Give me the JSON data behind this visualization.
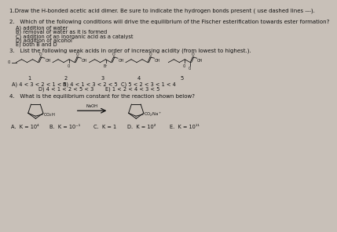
{
  "bg_color": "#c8c0b8",
  "text_color": "#111111",
  "title": "1.Draw the H-bonded acetic acid dimer. Be sure to indicate the hydrogen bonds present ( use dashed lines ---).",
  "q2_title": "2.   Which of the following conditions will drive the equilibrium of the Fischer esterification towards ester formation?",
  "q2_options": [
    "A) addition of water",
    "B) removal of water as it is formed",
    "C) addition of an inorganic acid as a catalyst",
    "D) addition of alcohol",
    "E) both B and D"
  ],
  "q3_title": "3.   List the following weak acids in order of increasing acidity (from lowest to highest.).",
  "q3_answer_A": "A) 4 < 3 < 2 < 1 < 5",
  "q3_answer_B": "B) 4 < 1 < 3 < 2 < 5",
  "q3_answer_C": "C) 5 < 2 < 3 < 1 < 4",
  "q3_answer_D": "D) 4 < 1 < 2 < 5 < 3",
  "q3_answer_E": "E) 1 < 2 < 4 < 3 < 5",
  "q4_title": "4.   What is the equilibrium constant for the reaction shown below?",
  "q4_answer_A": "A.  K = 10⁴",
  "q4_answer_B": "B.  K = 10⁻¹",
  "q4_answer_C": "C.  K = 1",
  "q4_answer_D": "D.  K = 10²",
  "q4_answer_E": "E.  K = 10¹¹",
  "naoh_label": "NaOH",
  "col_dark": "#111111",
  "fs_title": 5.0,
  "fs_body": 4.8,
  "fs_small": 4.2,
  "fs_chem": 3.8
}
